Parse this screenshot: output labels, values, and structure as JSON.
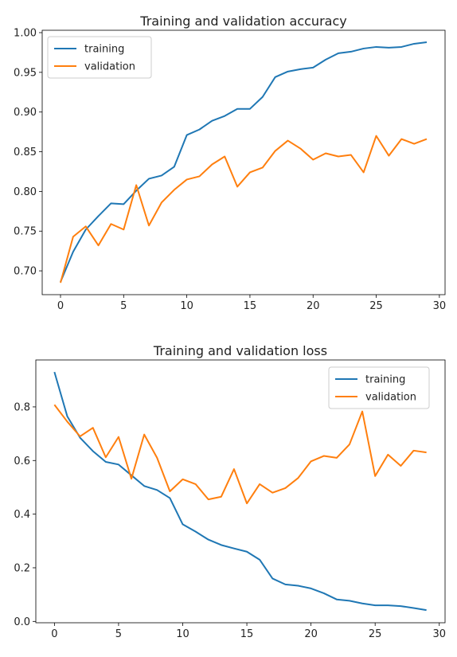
{
  "chart_data": [
    {
      "type": "line",
      "title": "Training and validation accuracy",
      "xlabel": "",
      "ylabel": "",
      "xlim": [
        -1.45,
        30.45
      ],
      "ylim": [
        0.67,
        1.003
      ],
      "x_ticks": [
        0,
        5,
        10,
        15,
        20,
        25,
        30
      ],
      "y_ticks": [
        0.7,
        0.75,
        0.8,
        0.85,
        0.9,
        0.95,
        1.0
      ],
      "y_tick_labels": [
        "0.70",
        "0.75",
        "0.80",
        "0.85",
        "0.90",
        "0.95",
        "1.00"
      ],
      "grid": false,
      "legend_position": "top-left",
      "x": [
        0,
        1,
        2,
        3,
        4,
        5,
        6,
        7,
        8,
        9,
        10,
        11,
        12,
        13,
        14,
        15,
        16,
        17,
        18,
        19,
        20,
        21,
        22,
        23,
        24,
        25,
        26,
        27,
        28,
        29
      ],
      "series": [
        {
          "name": "training",
          "color": "#1f77b4",
          "values": [
            0.686,
            0.724,
            0.752,
            0.769,
            0.785,
            0.784,
            0.801,
            0.816,
            0.82,
            0.831,
            0.871,
            0.878,
            0.889,
            0.895,
            0.904,
            0.904,
            0.919,
            0.944,
            0.951,
            0.954,
            0.956,
            0.966,
            0.974,
            0.976,
            0.98,
            0.982,
            0.981,
            0.982,
            0.986,
            0.988
          ]
        },
        {
          "name": "validation",
          "color": "#ff7f0e",
          "values": [
            0.685,
            0.743,
            0.756,
            0.732,
            0.759,
            0.752,
            0.808,
            0.757,
            0.786,
            0.802,
            0.815,
            0.819,
            0.834,
            0.844,
            0.806,
            0.824,
            0.83,
            0.851,
            0.864,
            0.854,
            0.84,
            0.848,
            0.844,
            0.846,
            0.824,
            0.87,
            0.845,
            0.866,
            0.86,
            0.866
          ]
        }
      ]
    },
    {
      "type": "line",
      "title": "Training and validation loss",
      "xlabel": "",
      "ylabel": "",
      "xlim": [
        -1.45,
        30.45
      ],
      "ylim": [
        -0.005,
        0.975
      ],
      "x_ticks": [
        0,
        5,
        10,
        15,
        20,
        25,
        30
      ],
      "y_ticks": [
        0.0,
        0.2,
        0.4,
        0.6,
        0.8
      ],
      "y_tick_labels": [
        "0.0",
        "0.2",
        "0.4",
        "0.6",
        "0.8"
      ],
      "grid": false,
      "legend_position": "top-right",
      "x": [
        0,
        1,
        2,
        3,
        4,
        5,
        6,
        7,
        8,
        9,
        10,
        11,
        12,
        13,
        14,
        15,
        16,
        17,
        18,
        19,
        20,
        21,
        22,
        23,
        24,
        25,
        26,
        27,
        28,
        29
      ],
      "series": [
        {
          "name": "training",
          "color": "#1f77b4",
          "values": [
            0.93,
            0.765,
            0.685,
            0.635,
            0.595,
            0.585,
            0.545,
            0.505,
            0.49,
            0.46,
            0.362,
            0.335,
            0.305,
            0.285,
            0.272,
            0.26,
            0.23,
            0.16,
            0.138,
            0.133,
            0.123,
            0.105,
            0.082,
            0.077,
            0.067,
            0.06,
            0.06,
            0.057,
            0.05,
            0.042
          ]
        },
        {
          "name": "validation",
          "color": "#ff7f0e",
          "values": [
            0.808,
            0.745,
            0.69,
            0.722,
            0.612,
            0.688,
            0.532,
            0.697,
            0.61,
            0.485,
            0.53,
            0.512,
            0.455,
            0.465,
            0.568,
            0.44,
            0.512,
            0.48,
            0.497,
            0.535,
            0.597,
            0.617,
            0.61,
            0.66,
            0.783,
            0.542,
            0.622,
            0.58,
            0.637,
            0.63
          ]
        }
      ]
    }
  ]
}
